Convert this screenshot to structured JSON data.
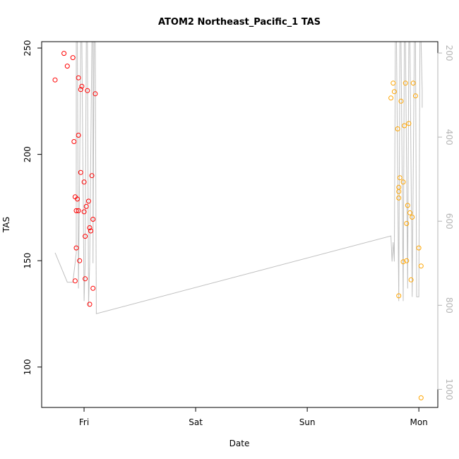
{
  "chart_data": {
    "type": "scatter",
    "title": "ATOM2 Northeast_Pacific_1 TAS",
    "xlabel": "Date",
    "ylabel": "TAS",
    "x_ticks": [
      {
        "day": 1.0,
        "label": "Fri"
      },
      {
        "day": 2.0,
        "label": "Sat"
      },
      {
        "day": 3.0,
        "label": "Sun"
      },
      {
        "day": 4.0,
        "label": "Mon"
      }
    ],
    "xlim": [
      0.62,
      4.17
    ],
    "ylim": [
      81,
      253
    ],
    "y_ticks": [
      100,
      150,
      200,
      250
    ],
    "y2_ticks": [
      200,
      400,
      600,
      800,
      1000
    ],
    "y2lim": [
      1043,
      173
    ],
    "y2_direction": "reversed",
    "grid": false,
    "series": [
      {
        "color": "#ff0000",
        "marker": "open-circle",
        "points": [
          [
            0.74,
            235.0
          ],
          [
            0.82,
            247.5
          ],
          [
            0.85,
            241.5
          ],
          [
            0.9,
            245.5
          ],
          [
            0.91,
            206.0
          ],
          [
            0.92,
            180.0
          ],
          [
            0.92,
            140.5
          ],
          [
            0.93,
            156.0
          ],
          [
            0.93,
            173.5
          ],
          [
            0.94,
            179.0
          ],
          [
            0.95,
            236.0
          ],
          [
            0.95,
            209.0
          ],
          [
            0.95,
            173.5
          ],
          [
            0.96,
            150.0
          ],
          [
            0.97,
            191.5
          ],
          [
            0.97,
            230.5
          ],
          [
            0.98,
            232.0
          ],
          [
            1.0,
            173.0
          ],
          [
            1.0,
            187.0
          ],
          [
            1.01,
            161.5
          ],
          [
            1.01,
            141.5
          ],
          [
            1.02,
            175.5
          ],
          [
            1.03,
            230.0
          ],
          [
            1.04,
            178.0
          ],
          [
            1.05,
            165.5
          ],
          [
            1.05,
            129.5
          ],
          [
            1.06,
            164.0
          ],
          [
            1.07,
            190.0
          ],
          [
            1.08,
            169.5
          ],
          [
            1.08,
            137.0
          ],
          [
            1.1,
            228.5
          ]
        ]
      },
      {
        "color": "#ffa500",
        "marker": "open-circle",
        "points": [
          [
            3.75,
            226.5
          ],
          [
            3.77,
            233.5
          ],
          [
            3.78,
            229.5
          ],
          [
            3.81,
            212.0
          ],
          [
            3.82,
            182.5
          ],
          [
            3.82,
            179.5
          ],
          [
            3.82,
            184.5
          ],
          [
            3.82,
            133.5
          ],
          [
            3.83,
            189.0
          ],
          [
            3.84,
            225.0
          ],
          [
            3.86,
            187.0
          ],
          [
            3.86,
            149.5
          ],
          [
            3.87,
            213.5
          ],
          [
            3.88,
            233.5
          ],
          [
            3.89,
            167.5
          ],
          [
            3.89,
            150.0
          ],
          [
            3.9,
            176.0
          ],
          [
            3.91,
            214.5
          ],
          [
            3.92,
            172.5
          ],
          [
            3.93,
            141.0
          ],
          [
            3.94,
            170.5
          ],
          [
            3.95,
            233.5
          ],
          [
            3.97,
            227.5
          ],
          [
            4.0,
            156.0
          ],
          [
            4.02,
            147.5
          ],
          [
            4.02,
            85.5
          ]
        ]
      }
    ],
    "line_series": {
      "color": "#c0c0c0",
      "axis": "right",
      "points": [
        [
          0.74,
          675
        ],
        [
          0.85,
          745
        ],
        [
          0.9,
          745
        ],
        [
          0.93,
          676
        ],
        [
          0.93,
          173
        ],
        [
          0.94,
          173
        ],
        [
          0.95,
          760
        ],
        [
          0.96,
          500
        ],
        [
          0.97,
          173
        ],
        [
          0.98,
          173
        ],
        [
          1.0,
          790
        ],
        [
          1.01,
          700
        ],
        [
          1.02,
          173
        ],
        [
          1.03,
          173
        ],
        [
          1.04,
          800
        ],
        [
          1.05,
          700
        ],
        [
          1.07,
          173
        ],
        [
          1.08,
          173
        ],
        [
          1.08,
          700
        ],
        [
          1.09,
          173
        ],
        [
          1.1,
          173
        ],
        [
          1.11,
          820
        ],
        [
          3.75,
          635
        ],
        [
          3.76,
          696
        ],
        [
          3.77,
          650
        ],
        [
          3.78,
          696
        ],
        [
          3.79,
          173
        ],
        [
          3.8,
          173
        ],
        [
          3.82,
          790
        ],
        [
          3.83,
          173
        ],
        [
          3.84,
          173
        ],
        [
          3.86,
          790
        ],
        [
          3.87,
          173
        ],
        [
          3.88,
          173
        ],
        [
          3.9,
          760
        ],
        [
          3.91,
          173
        ],
        [
          3.92,
          173
        ],
        [
          3.94,
          780
        ],
        [
          3.96,
          173
        ],
        [
          3.97,
          173
        ],
        [
          3.98,
          780
        ],
        [
          4.0,
          780
        ],
        [
          4.01,
          173
        ],
        [
          4.02,
          173
        ],
        [
          4.03,
          290
        ],
        [
          4.03,
          330
        ]
      ]
    }
  }
}
